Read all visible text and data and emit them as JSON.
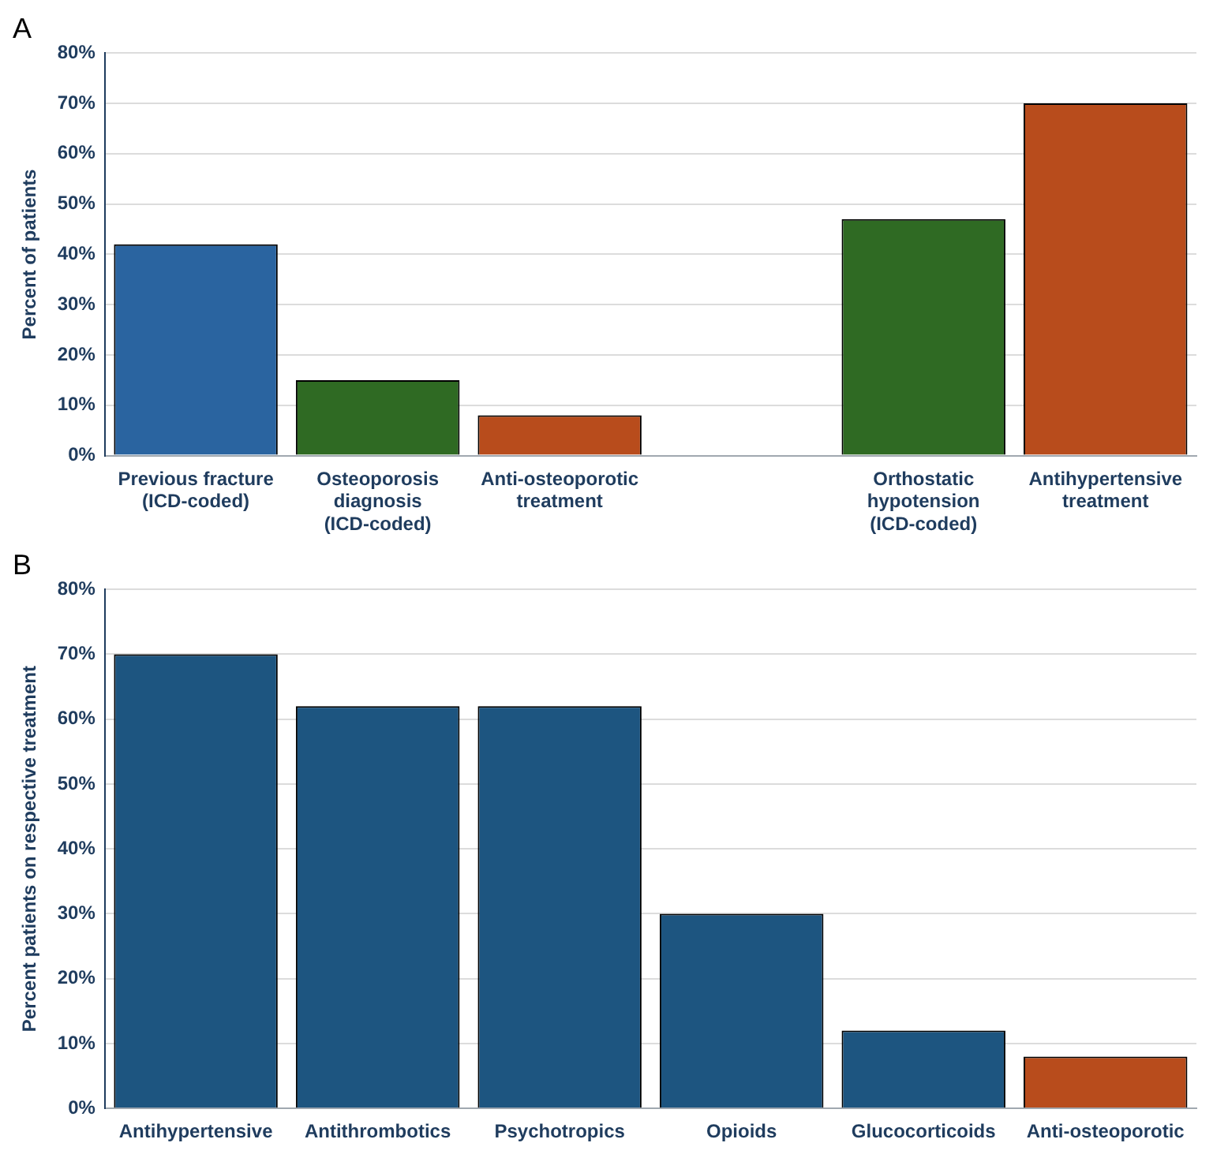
{
  "chart_data": [
    {
      "type": "bar",
      "title": "A",
      "ylabel": "Percent of patients",
      "categories": [
        "Previous fracture (ICD-coded)",
        "Osteoporosis diagnosis (ICD-coded)",
        "Anti-osteoporotic treatment",
        null,
        "Orthostatic hypotension (ICD-coded)",
        "Antihypertensive treatment"
      ],
      "values": [
        42,
        15,
        8,
        null,
        47,
        70
      ],
      "colors": [
        "#2a64a0",
        "#2f6a23",
        "#b84c1c",
        "#888888",
        "#2f6a23",
        "#b84c1c"
      ],
      "ylim": [
        0,
        80
      ],
      "yticks": [
        {
          "value": 0,
          "label": "0%"
        },
        {
          "value": 10,
          "label": "10%"
        },
        {
          "value": 20,
          "label": "20%"
        },
        {
          "value": 30,
          "label": "30%"
        },
        {
          "value": 40,
          "label": "40%"
        },
        {
          "value": 50,
          "label": "50%"
        },
        {
          "value": 60,
          "label": "60%"
        },
        {
          "value": 70,
          "label": "70%"
        },
        {
          "value": 80,
          "label": "80%"
        }
      ],
      "grid": "y"
    },
    {
      "type": "bar",
      "title": "B",
      "ylabel": "Percent patients on respective treatment",
      "categories": [
        "Antihypertensive",
        "Antithrombotics",
        "Psychotropics",
        "Opioids",
        "Glucocorticoids",
        "Anti-osteoporotic"
      ],
      "values": [
        70,
        62,
        62,
        30,
        12,
        8
      ],
      "colors": [
        "#1d5580",
        "#1d5580",
        "#1d5580",
        "#1d5580",
        "#1d5580",
        "#b84c1c"
      ],
      "ylim": [
        0,
        80
      ],
      "yticks": [
        {
          "value": 0,
          "label": "0%"
        },
        {
          "value": 10,
          "label": "10%"
        },
        {
          "value": 20,
          "label": "20%"
        },
        {
          "value": 30,
          "label": "30%"
        },
        {
          "value": 40,
          "label": "40%"
        },
        {
          "value": 50,
          "label": "50%"
        },
        {
          "value": 60,
          "label": "60%"
        },
        {
          "value": 70,
          "label": "70%"
        },
        {
          "value": 80,
          "label": "80%"
        }
      ],
      "grid": "y"
    }
  ]
}
